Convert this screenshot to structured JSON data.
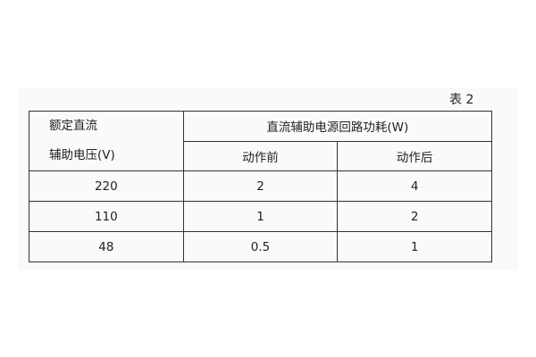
{
  "caption": "表 2",
  "table": {
    "header_left": [
      "额定直流",
      "辅助电压(V)"
    ],
    "header_group": "直流辅助电源回路功耗(W)",
    "subheaders": [
      "动作前",
      "动作后"
    ],
    "rows": [
      [
        "220",
        "2",
        "4"
      ],
      [
        "110",
        "1",
        "2"
      ],
      [
        "48",
        "0.5",
        "1"
      ]
    ]
  }
}
